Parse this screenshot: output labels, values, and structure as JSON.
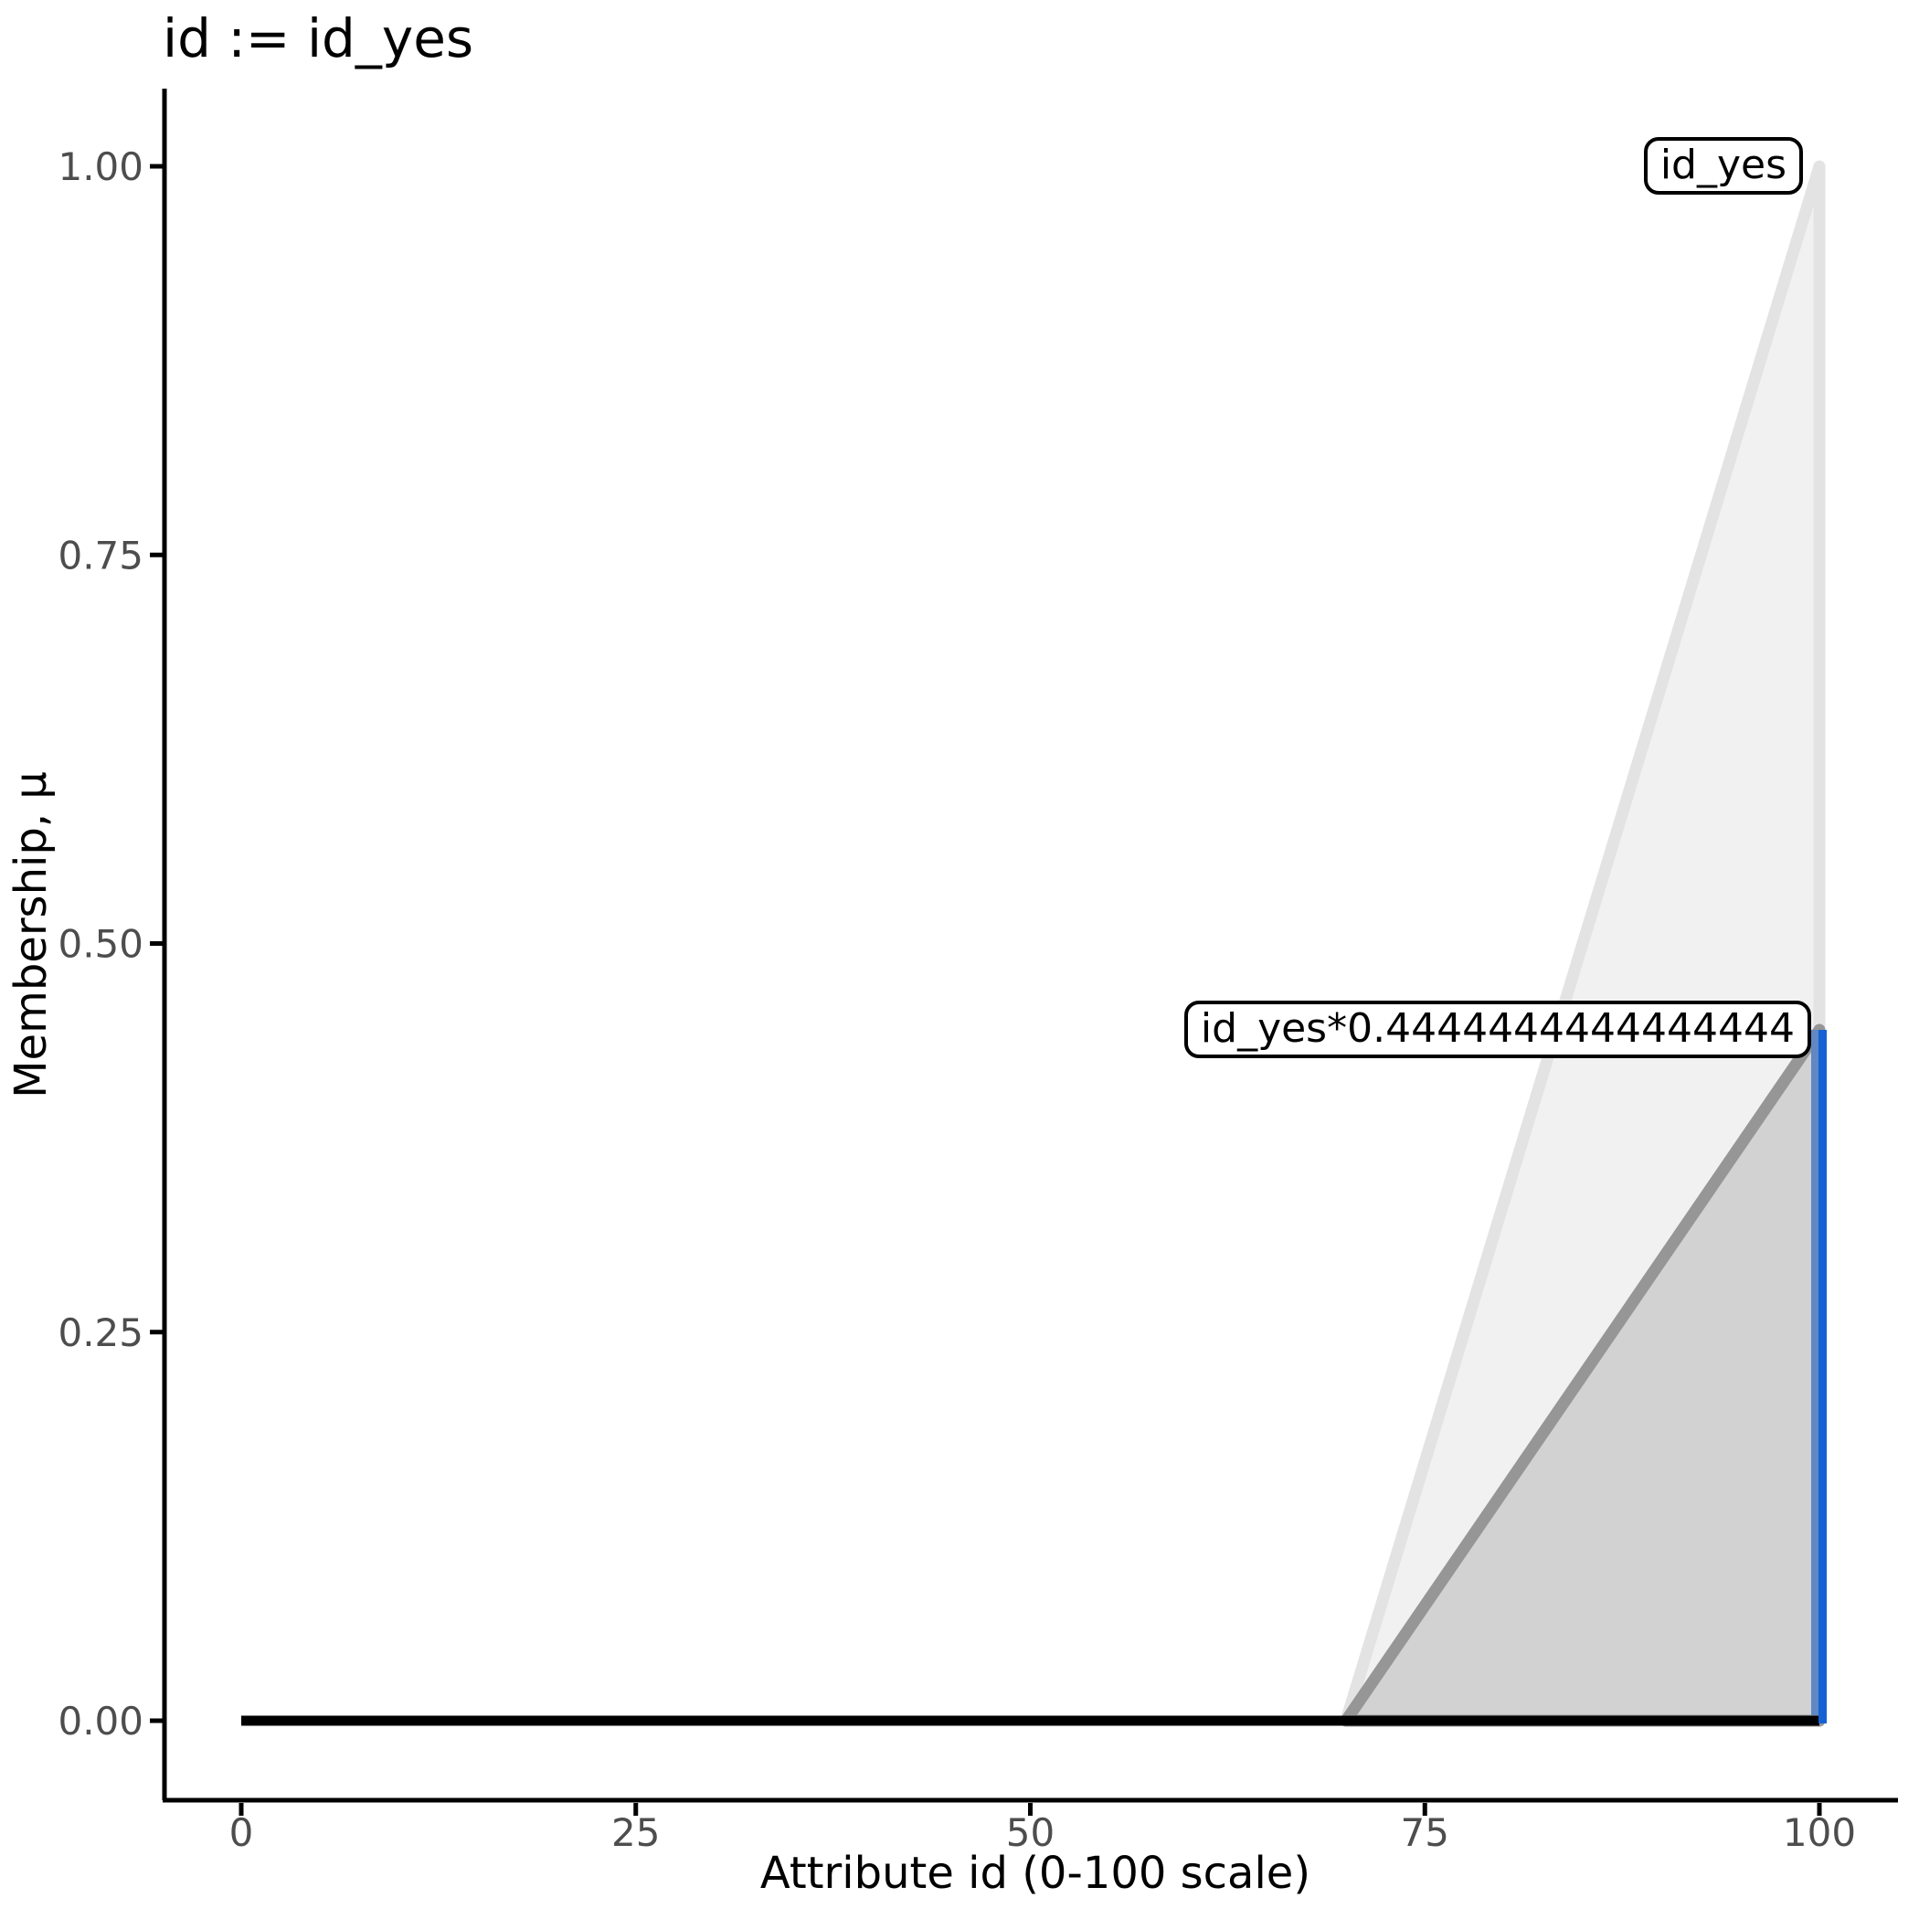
{
  "title": "id := id_yes",
  "axes": {
    "x": {
      "label": "Attribute id (0-100 scale)",
      "range": [
        0,
        100
      ],
      "ticks": [
        {
          "value": 0,
          "label": "0"
        },
        {
          "value": 25,
          "label": "25"
        },
        {
          "value": 50,
          "label": "50"
        },
        {
          "value": 75,
          "label": "75"
        },
        {
          "value": 100,
          "label": "100"
        }
      ]
    },
    "y": {
      "label": "Membership, μ",
      "range": [
        0,
        1
      ],
      "ticks": [
        {
          "value": 1.0,
          "label": "1.00"
        },
        {
          "value": 0.75,
          "label": "0.75"
        },
        {
          "value": 0.5,
          "label": "0.50"
        },
        {
          "value": 0.25,
          "label": "0.25"
        },
        {
          "value": 0.0,
          "label": "0.00"
        }
      ]
    }
  },
  "chart_data": {
    "type": "area",
    "title": "id := id_yes",
    "xlabel": "Attribute id (0-100 scale)",
    "ylabel": "Membership, μ",
    "xlim": [
      0,
      100
    ],
    "ylim": [
      0,
      1
    ],
    "grid": "off",
    "legend": "none",
    "series": [
      {
        "name": "id_yes",
        "type": "area",
        "points": [
          [
            70,
            0
          ],
          [
            100,
            1
          ],
          [
            100,
            0
          ]
        ],
        "fill": "#f1f1f1",
        "stroke": "#e3e3e3",
        "stroke_width": 13
      },
      {
        "name": "id_yes_scaled",
        "label": "id_yes*0.4444444444444444",
        "type": "area",
        "points": [
          [
            70,
            0
          ],
          [
            100,
            0.4444444444444444
          ],
          [
            100,
            0
          ]
        ],
        "fill": "#d2d2d2",
        "stroke": "#969696",
        "stroke_width": 13
      },
      {
        "name": "zero_baseline",
        "type": "line",
        "points": [
          [
            0,
            0
          ],
          [
            100,
            0
          ]
        ],
        "stroke": "#000000",
        "stroke_width": 11
      },
      {
        "name": "activation_level",
        "type": "vline",
        "x": 100,
        "y0": 0,
        "y1": 0.4444444444444444,
        "colors": [
          "#5f88c4",
          "#1661d3"
        ],
        "widths": [
          8,
          9
        ]
      }
    ],
    "annotations": [
      {
        "id": "label_id_yes",
        "text": "id_yes",
        "anchor": [
          100,
          1.0
        ]
      },
      {
        "id": "label_id_yes_scaled",
        "text": "id_yes*0.4444444444444444",
        "anchor": [
          100,
          0.4444444444444444
        ]
      }
    ]
  }
}
